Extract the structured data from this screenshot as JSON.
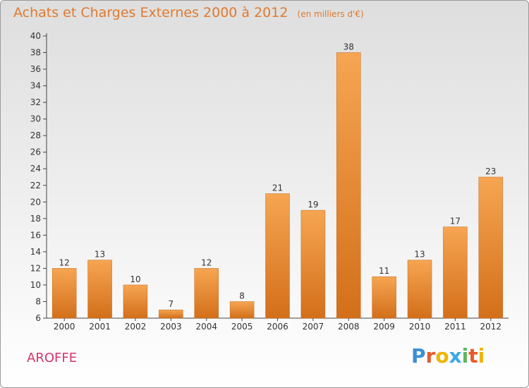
{
  "chart_data": {
    "type": "bar",
    "title": "Achats et Charges Externes 2000 à 2012",
    "subtitle": "(en milliers d'€)",
    "xlabel": "",
    "ylabel": "",
    "categories": [
      "2000",
      "2001",
      "2002",
      "2003",
      "2004",
      "2005",
      "2006",
      "2007",
      "2008",
      "2009",
      "2010",
      "2011",
      "2012"
    ],
    "values": [
      12,
      13,
      10,
      7,
      12,
      8,
      21,
      19,
      38,
      11,
      13,
      17,
      23
    ],
    "ylim": [
      6,
      40
    ],
    "yticks": [
      6,
      8,
      10,
      12,
      14,
      16,
      18,
      20,
      22,
      24,
      26,
      28,
      30,
      32,
      34,
      36,
      38,
      40
    ],
    "grid": false,
    "bar_color": "#f08c30"
  },
  "footer": {
    "name": "AROFFE",
    "logo_letters": [
      "P",
      "r",
      "o",
      "x",
      "i",
      "t",
      "i"
    ],
    "logo_colors": [
      "#3a8fd6",
      "#e85a2a",
      "#f0b400",
      "#3aa8e8",
      "#5cb85c",
      "#e85a2a",
      "#f0b400"
    ]
  }
}
